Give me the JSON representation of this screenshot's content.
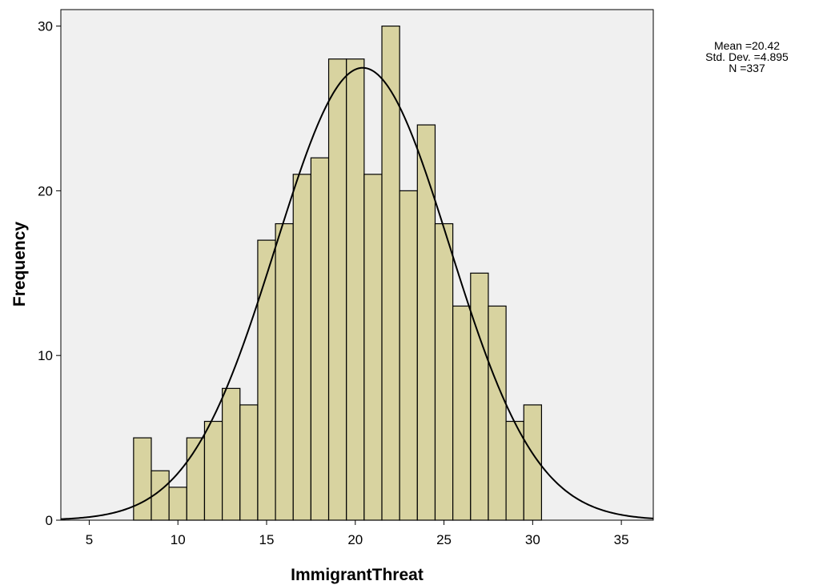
{
  "chart_data": {
    "type": "bar",
    "subtype": "histogram",
    "title": "",
    "xlabel": "ImmigrantThreat",
    "ylabel": "Frequency",
    "xlim": [
      3.4,
      36.8
    ],
    "ylim": [
      0,
      31
    ],
    "x_ticks": [
      5,
      10,
      15,
      20,
      25,
      30,
      35
    ],
    "y_ticks": [
      0,
      10,
      20,
      30
    ],
    "grid": false,
    "bin_width": 1,
    "bins": [
      {
        "x": 8,
        "count": 5
      },
      {
        "x": 9,
        "count": 3
      },
      {
        "x": 10,
        "count": 2
      },
      {
        "x": 11,
        "count": 5
      },
      {
        "x": 12,
        "count": 6
      },
      {
        "x": 13,
        "count": 8
      },
      {
        "x": 14,
        "count": 7
      },
      {
        "x": 15,
        "count": 17
      },
      {
        "x": 16,
        "count": 18
      },
      {
        "x": 17,
        "count": 21
      },
      {
        "x": 18,
        "count": 22
      },
      {
        "x": 19,
        "count": 28
      },
      {
        "x": 20,
        "count": 28
      },
      {
        "x": 21,
        "count": 21
      },
      {
        "x": 22,
        "count": 30
      },
      {
        "x": 23,
        "count": 20
      },
      {
        "x": 24,
        "count": 24
      },
      {
        "x": 25,
        "count": 18
      },
      {
        "x": 26,
        "count": 13
      },
      {
        "x": 27,
        "count": 15
      },
      {
        "x": 28,
        "count": 13
      },
      {
        "x": 29,
        "count": 6
      },
      {
        "x": 30,
        "count": 7
      }
    ],
    "normal_curve": {
      "mean": 20.42,
      "std_dev": 4.895,
      "n": 337
    },
    "colors": {
      "bar_fill": "#d8d3a0",
      "bar_stroke": "#000000",
      "plot_bg": "#f0f0f0",
      "curve": "#000000"
    }
  },
  "stats_box": {
    "mean": "Mean =20.42",
    "std_dev": "Std. Dev. =4.895",
    "n": "N =337"
  }
}
